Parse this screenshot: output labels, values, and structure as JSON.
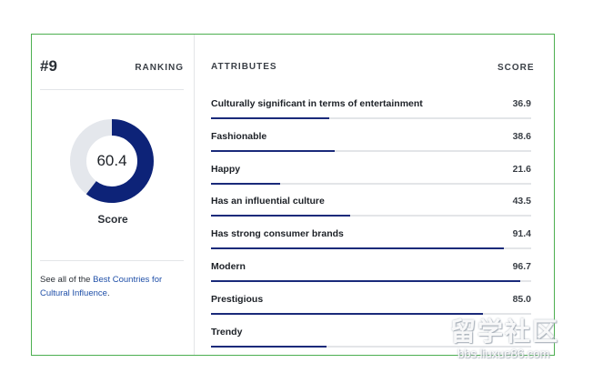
{
  "ranking": {
    "number": "#9",
    "label": "RANKING"
  },
  "score": {
    "value": "60.4",
    "percent": 60.4,
    "caption": "Score",
    "colors": {
      "fill": "#0d2378",
      "track": "#e4e7ec"
    }
  },
  "see_all": {
    "prefix": "See all of the ",
    "link_text": "Best Countries for Cultural Influence",
    "suffix": "."
  },
  "attributes": {
    "header_label": "ATTRIBUTES",
    "header_score": "SCORE",
    "bar_color": "#1a2a7a",
    "rows": [
      {
        "label": "Culturally significant in terms of entertainment",
        "value": "36.9",
        "percent": 36.9
      },
      {
        "label": "Fashionable",
        "value": "38.6",
        "percent": 38.6
      },
      {
        "label": "Happy",
        "value": "21.6",
        "percent": 21.6
      },
      {
        "label": "Has an influential culture",
        "value": "43.5",
        "percent": 43.5
      },
      {
        "label": "Has strong consumer brands",
        "value": "91.4",
        "percent": 91.4
      },
      {
        "label": "Modern",
        "value": "96.7",
        "percent": 96.7
      },
      {
        "label": "Prestigious",
        "value": "85.0",
        "percent": 85.0
      },
      {
        "label": "Trendy",
        "value": "",
        "percent": 36.0
      }
    ]
  },
  "watermark": {
    "text": "留学社区",
    "url": "bbs.liuxue86.com"
  }
}
